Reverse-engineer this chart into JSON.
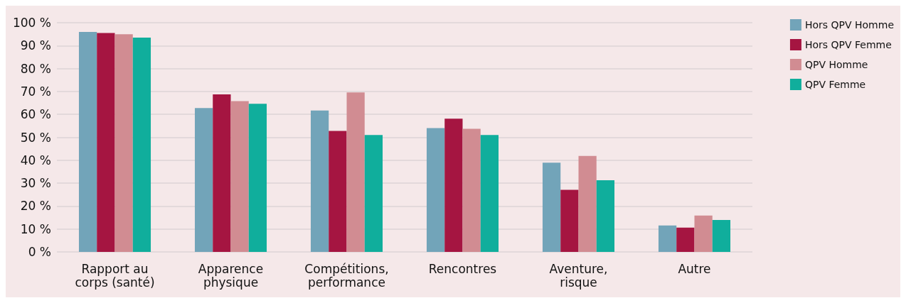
{
  "chart_data": {
    "type": "bar",
    "categories": [
      "Rapport au corps (santé)",
      "Apparence physique",
      "Compétitions, performance",
      "Rencontres",
      "Aventure, risque",
      "Autre"
    ],
    "series": [
      {
        "name": "Hors QPV Homme",
        "color": "#72a4b9",
        "values": [
          96,
          62.8,
          61.7,
          54,
          38.9,
          11.5
        ]
      },
      {
        "name": "Hors QPV Femme",
        "color": "#a51541",
        "values": [
          95.5,
          68.7,
          52.8,
          58.1,
          27.1,
          10.6
        ]
      },
      {
        "name": "QPV Homme",
        "color": "#d18c92",
        "values": [
          95,
          65.8,
          69.6,
          53.7,
          41.9,
          15.9
        ]
      },
      {
        "name": "QPV Femme",
        "color": "#10ae9c",
        "values": [
          93.5,
          64.6,
          51,
          51,
          31.3,
          13.9
        ]
      }
    ],
    "ylim": [
      0,
      100
    ],
    "yticks": [
      {
        "value": 0,
        "label": "0 %"
      },
      {
        "value": 10,
        "label": "10 %"
      },
      {
        "value": 20,
        "label": "20 %"
      },
      {
        "value": 30,
        "label": "30 %"
      },
      {
        "value": 40,
        "label": "40 %"
      },
      {
        "value": 50,
        "label": "50 %"
      },
      {
        "value": 60,
        "label": "60 %"
      },
      {
        "value": 70,
        "label": "70 %"
      },
      {
        "value": 80,
        "label": "80 %"
      },
      {
        "value": 90,
        "label": "90 %"
      },
      {
        "value": 100,
        "label": "100 %"
      }
    ],
    "grid": "y",
    "legend": "top right"
  }
}
